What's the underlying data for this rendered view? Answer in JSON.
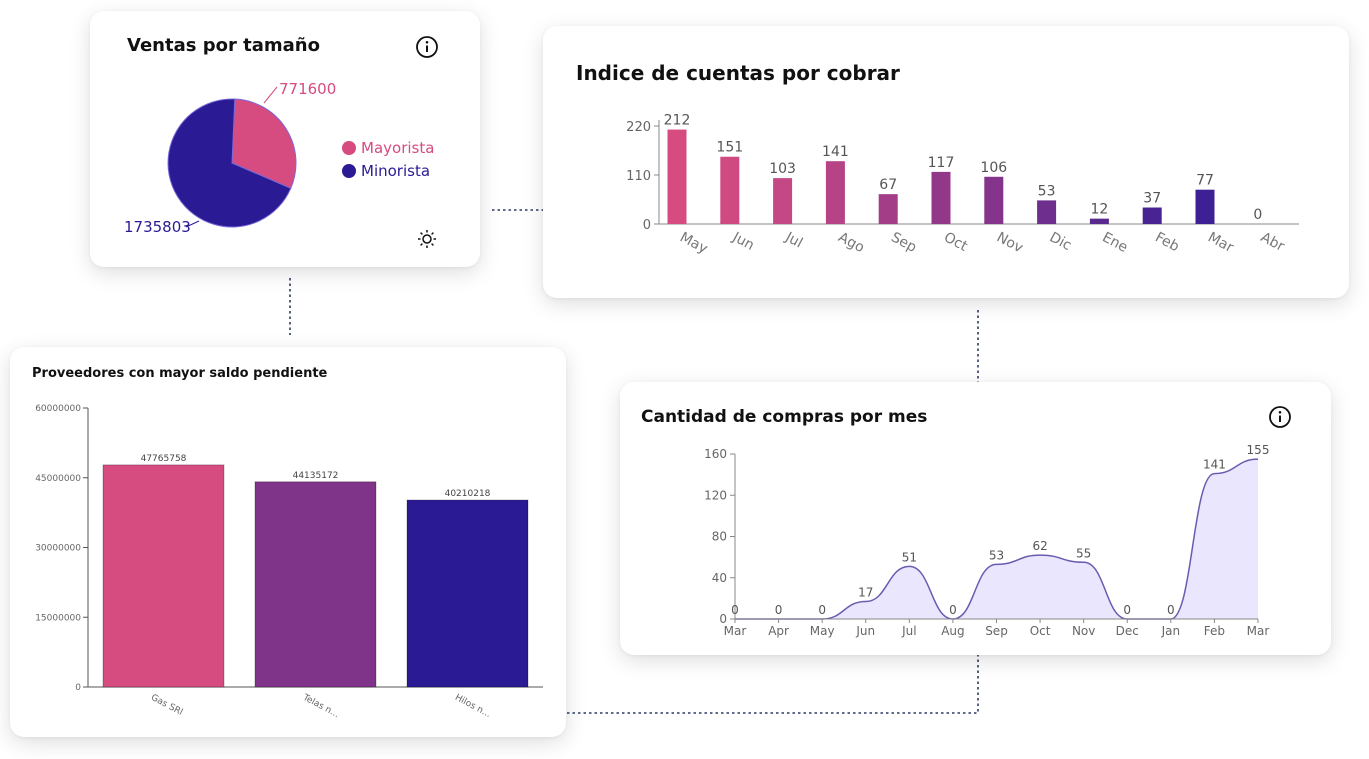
{
  "cards": {
    "ventas_tamano": {
      "title": "Ventas por tamaño"
    },
    "cuentas_cobrar": {
      "title": "Indice de cuentas por cobrar"
    },
    "proveedores": {
      "title": "Proveedores con mayor saldo pendiente"
    },
    "compras_mes": {
      "title": "Cantidad de compras por mes"
    }
  },
  "colors": {
    "pink": "#d64b80",
    "purple": "#7f3389",
    "navy": "#2a1a94",
    "area_fill": "#e9e6fd",
    "area_stroke": "#6b5bb0"
  },
  "chart_data": [
    {
      "id": "ventas",
      "type": "pie",
      "title": "Ventas por tamaño",
      "slices": [
        {
          "label": "Mayorista",
          "value": 771600,
          "value_label": "771600",
          "color": "#d64b80"
        },
        {
          "label": "Minorista",
          "value": 1735803,
          "value_label": "1735803",
          "color": "#2a1a94"
        }
      ],
      "legend": "right"
    },
    {
      "id": "cuentas",
      "type": "bar",
      "title": "Indice de cuentas por cobrar",
      "categories": [
        "May",
        "Jun",
        "Jul",
        "Ago",
        "Sep",
        "Oct",
        "Nov",
        "Dic",
        "Ene",
        "Feb",
        "Mar",
        "Abr"
      ],
      "values": [
        212,
        151,
        103,
        141,
        67,
        117,
        106,
        53,
        12,
        37,
        77,
        0
      ],
      "value_labels": [
        "212",
        "151",
        "103",
        "141",
        "67",
        "117",
        "106",
        "53",
        "12",
        "37",
        "77",
        "0"
      ],
      "ylim": [
        0,
        220
      ],
      "yticks": [
        0,
        110,
        220
      ],
      "ytick_labels": [
        "0",
        "110",
        "220"
      ],
      "colors": [
        "#d64b80",
        "#d04a82",
        "#c34884",
        "#b54386",
        "#a33d87",
        "#923889",
        "#84348b",
        "#6e2e8e",
        "#5a2990",
        "#4a2392",
        "#3c2094",
        "#2a1a94"
      ]
    },
    {
      "id": "proveedores",
      "type": "bar",
      "title": "Proveedores con mayor saldo pendiente",
      "categories": [
        "Gas SRl",
        "Telas n...",
        "Hilos n..."
      ],
      "values": [
        47765758,
        44135172,
        40210218
      ],
      "value_labels": [
        "47765758",
        "44135172",
        "40210218"
      ],
      "ylim": [
        0,
        60000000
      ],
      "yticks": [
        0,
        15000000,
        30000000,
        45000000,
        60000000
      ],
      "ytick_labels": [
        "0",
        "15000000",
        "30000000",
        "45000000",
        "60000000"
      ],
      "colors": [
        "#d64b80",
        "#7f3389",
        "#2a1a94"
      ]
    },
    {
      "id": "compras",
      "type": "area",
      "title": "Cantidad de compras por mes",
      "x": [
        "Mar",
        "Apr",
        "May",
        "Jun",
        "Jul",
        "Aug",
        "Sep",
        "Oct",
        "Nov",
        "Dec",
        "Jan",
        "Feb",
        "Mar"
      ],
      "values": [
        0,
        0,
        0,
        17,
        51,
        0,
        53,
        62,
        55,
        0,
        0,
        141,
        155
      ],
      "value_labels": [
        "0",
        "0",
        "0",
        "17",
        "51",
        "0",
        "53",
        "62",
        "55",
        "0",
        "0",
        "141",
        "155"
      ],
      "ylim": [
        0,
        160
      ],
      "yticks": [
        0,
        40,
        80,
        120,
        160
      ],
      "ytick_labels": [
        "0",
        "40",
        "80",
        "120",
        "160"
      ]
    }
  ]
}
